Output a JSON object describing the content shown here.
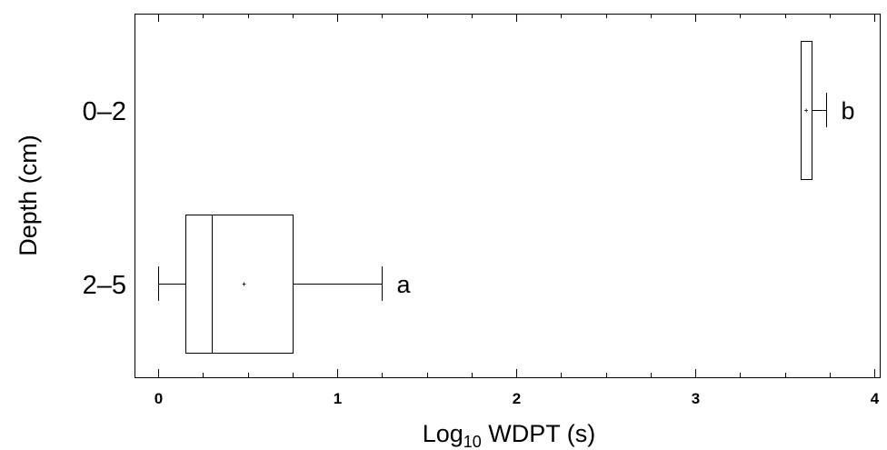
{
  "chart_data": {
    "type": "box",
    "xlabel": "Log",
    "xlabel_sub": "10",
    "xlabel_rest": " WDPT (s)",
    "ylabel": "Depth (cm)",
    "xlim": [
      -0.13,
      4.05
    ],
    "xticks": [
      0,
      1,
      2,
      3,
      4
    ],
    "xtick_labels": [
      "0",
      "1",
      "2",
      "3",
      "4"
    ],
    "xminor_step": 0.25,
    "grid": false,
    "categories": [
      "0–2",
      "2–5"
    ],
    "boxes": [
      {
        "category": "0–2",
        "whisker_low": 3.59,
        "q1": 3.59,
        "median": 3.59,
        "q3": 3.65,
        "whisker_high": 3.73,
        "mean": 3.62,
        "letter": "b"
      },
      {
        "category": "2–5",
        "whisker_low": 0.0,
        "q1": 0.15,
        "median": 0.3,
        "q3": 0.75,
        "whisker_high": 1.25,
        "mean": 0.48,
        "letter": "a"
      }
    ]
  }
}
